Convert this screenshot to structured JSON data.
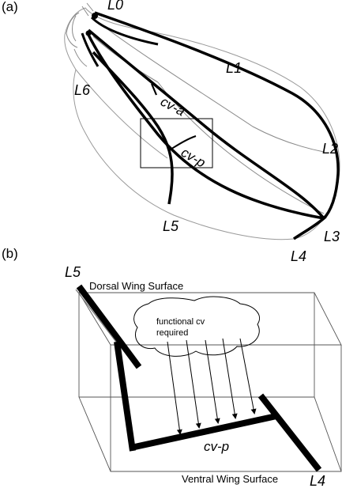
{
  "panel_a": {
    "tag": "(a)",
    "labels": {
      "l0": "L0",
      "l1": "L1",
      "l2": "L2",
      "l3": "L3",
      "l4": "L4",
      "l5": "L5",
      "l6": "L6",
      "cva": "cv-a",
      "cvp": "cv-p"
    }
  },
  "panel_b": {
    "tag": "(b)",
    "labels": {
      "l5": "L5",
      "l4": "L4",
      "cvp": "cv-p",
      "dorsal": "Dorsal Wing Surface",
      "ventral": "Ventral Wing Surface",
      "cloud_line1": "functional cv",
      "cloud_line2": "required"
    }
  }
}
